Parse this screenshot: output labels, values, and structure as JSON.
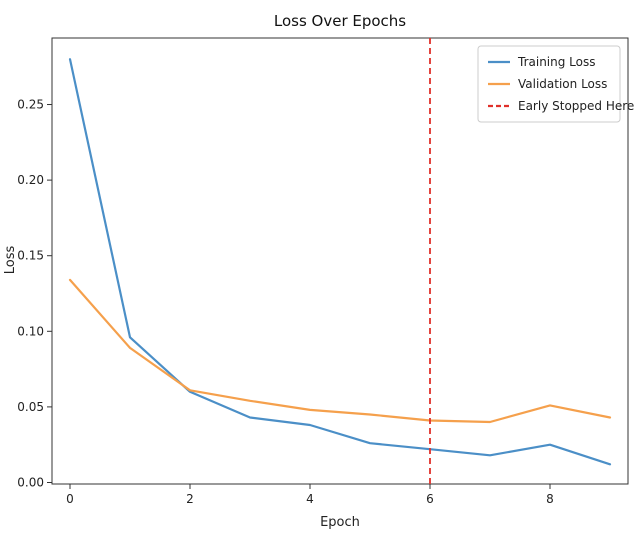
{
  "chart_data": {
    "type": "line",
    "title": "Loss Over Epochs",
    "xlabel": "Epoch",
    "ylabel": "Loss",
    "xlim": [
      -0.3,
      9.3
    ],
    "ylim": [
      -0.001,
      0.294
    ],
    "x_ticks": [
      0,
      2,
      4,
      6,
      8
    ],
    "y_ticks": [
      0.0,
      0.05,
      0.1,
      0.15,
      0.2,
      0.25
    ],
    "x_tick_labels": [
      "0",
      "2",
      "4",
      "6",
      "8"
    ],
    "y_tick_labels": [
      "0.00",
      "0.05",
      "0.10",
      "0.15",
      "0.20",
      "0.25"
    ],
    "x": [
      0,
      1,
      2,
      3,
      4,
      5,
      6,
      7,
      8,
      9
    ],
    "series": [
      {
        "name": "Training Loss",
        "color": "#4b8fc7",
        "values": [
          0.28,
          0.096,
          0.06,
          0.043,
          0.038,
          0.026,
          0.022,
          0.018,
          0.025,
          0.012
        ]
      },
      {
        "name": "Validation Loss",
        "color": "#f5a04c",
        "values": [
          0.134,
          0.089,
          0.061,
          0.054,
          0.048,
          0.045,
          0.041,
          0.04,
          0.051,
          0.043
        ]
      }
    ],
    "vline": {
      "name": "Early Stopped Here",
      "x": 6,
      "color": "#e0302a",
      "style": "dashed"
    },
    "grid": false,
    "legend_position": "top-right"
  }
}
